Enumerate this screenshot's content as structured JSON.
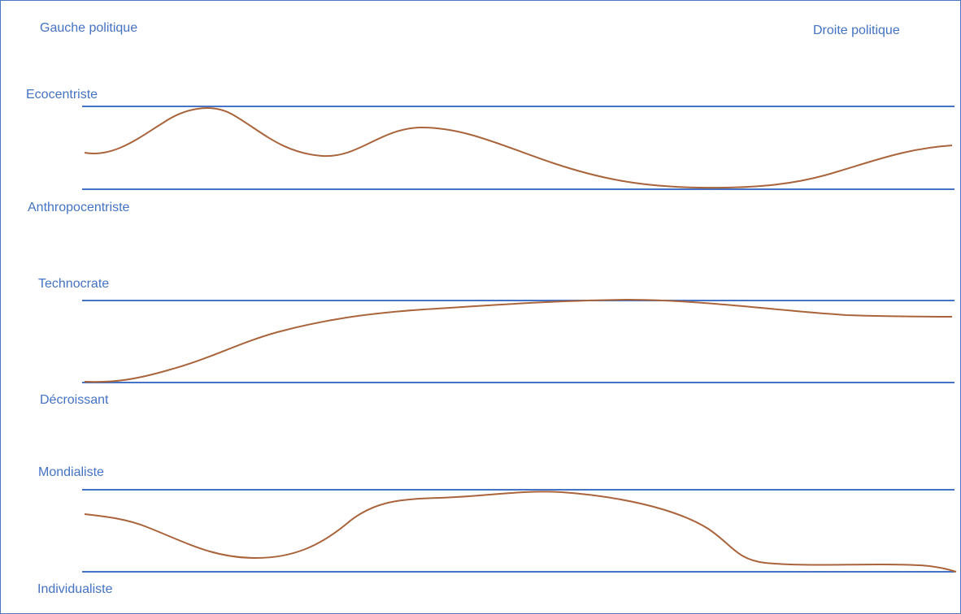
{
  "header": {
    "left_label": "Gauche politique",
    "right_label": "Droite politique"
  },
  "colors": {
    "axis_line": "#4472c4",
    "label_text": "#4472c4",
    "curve": "#a9643b"
  },
  "scales": [
    {
      "top_label": "Ecocentriste",
      "bottom_label": "Anthropocentriste"
    },
    {
      "top_label": "Technocrate",
      "bottom_label": "Décroissant"
    },
    {
      "top_label": "Mondialiste",
      "bottom_label": "Individualiste"
    }
  ]
}
